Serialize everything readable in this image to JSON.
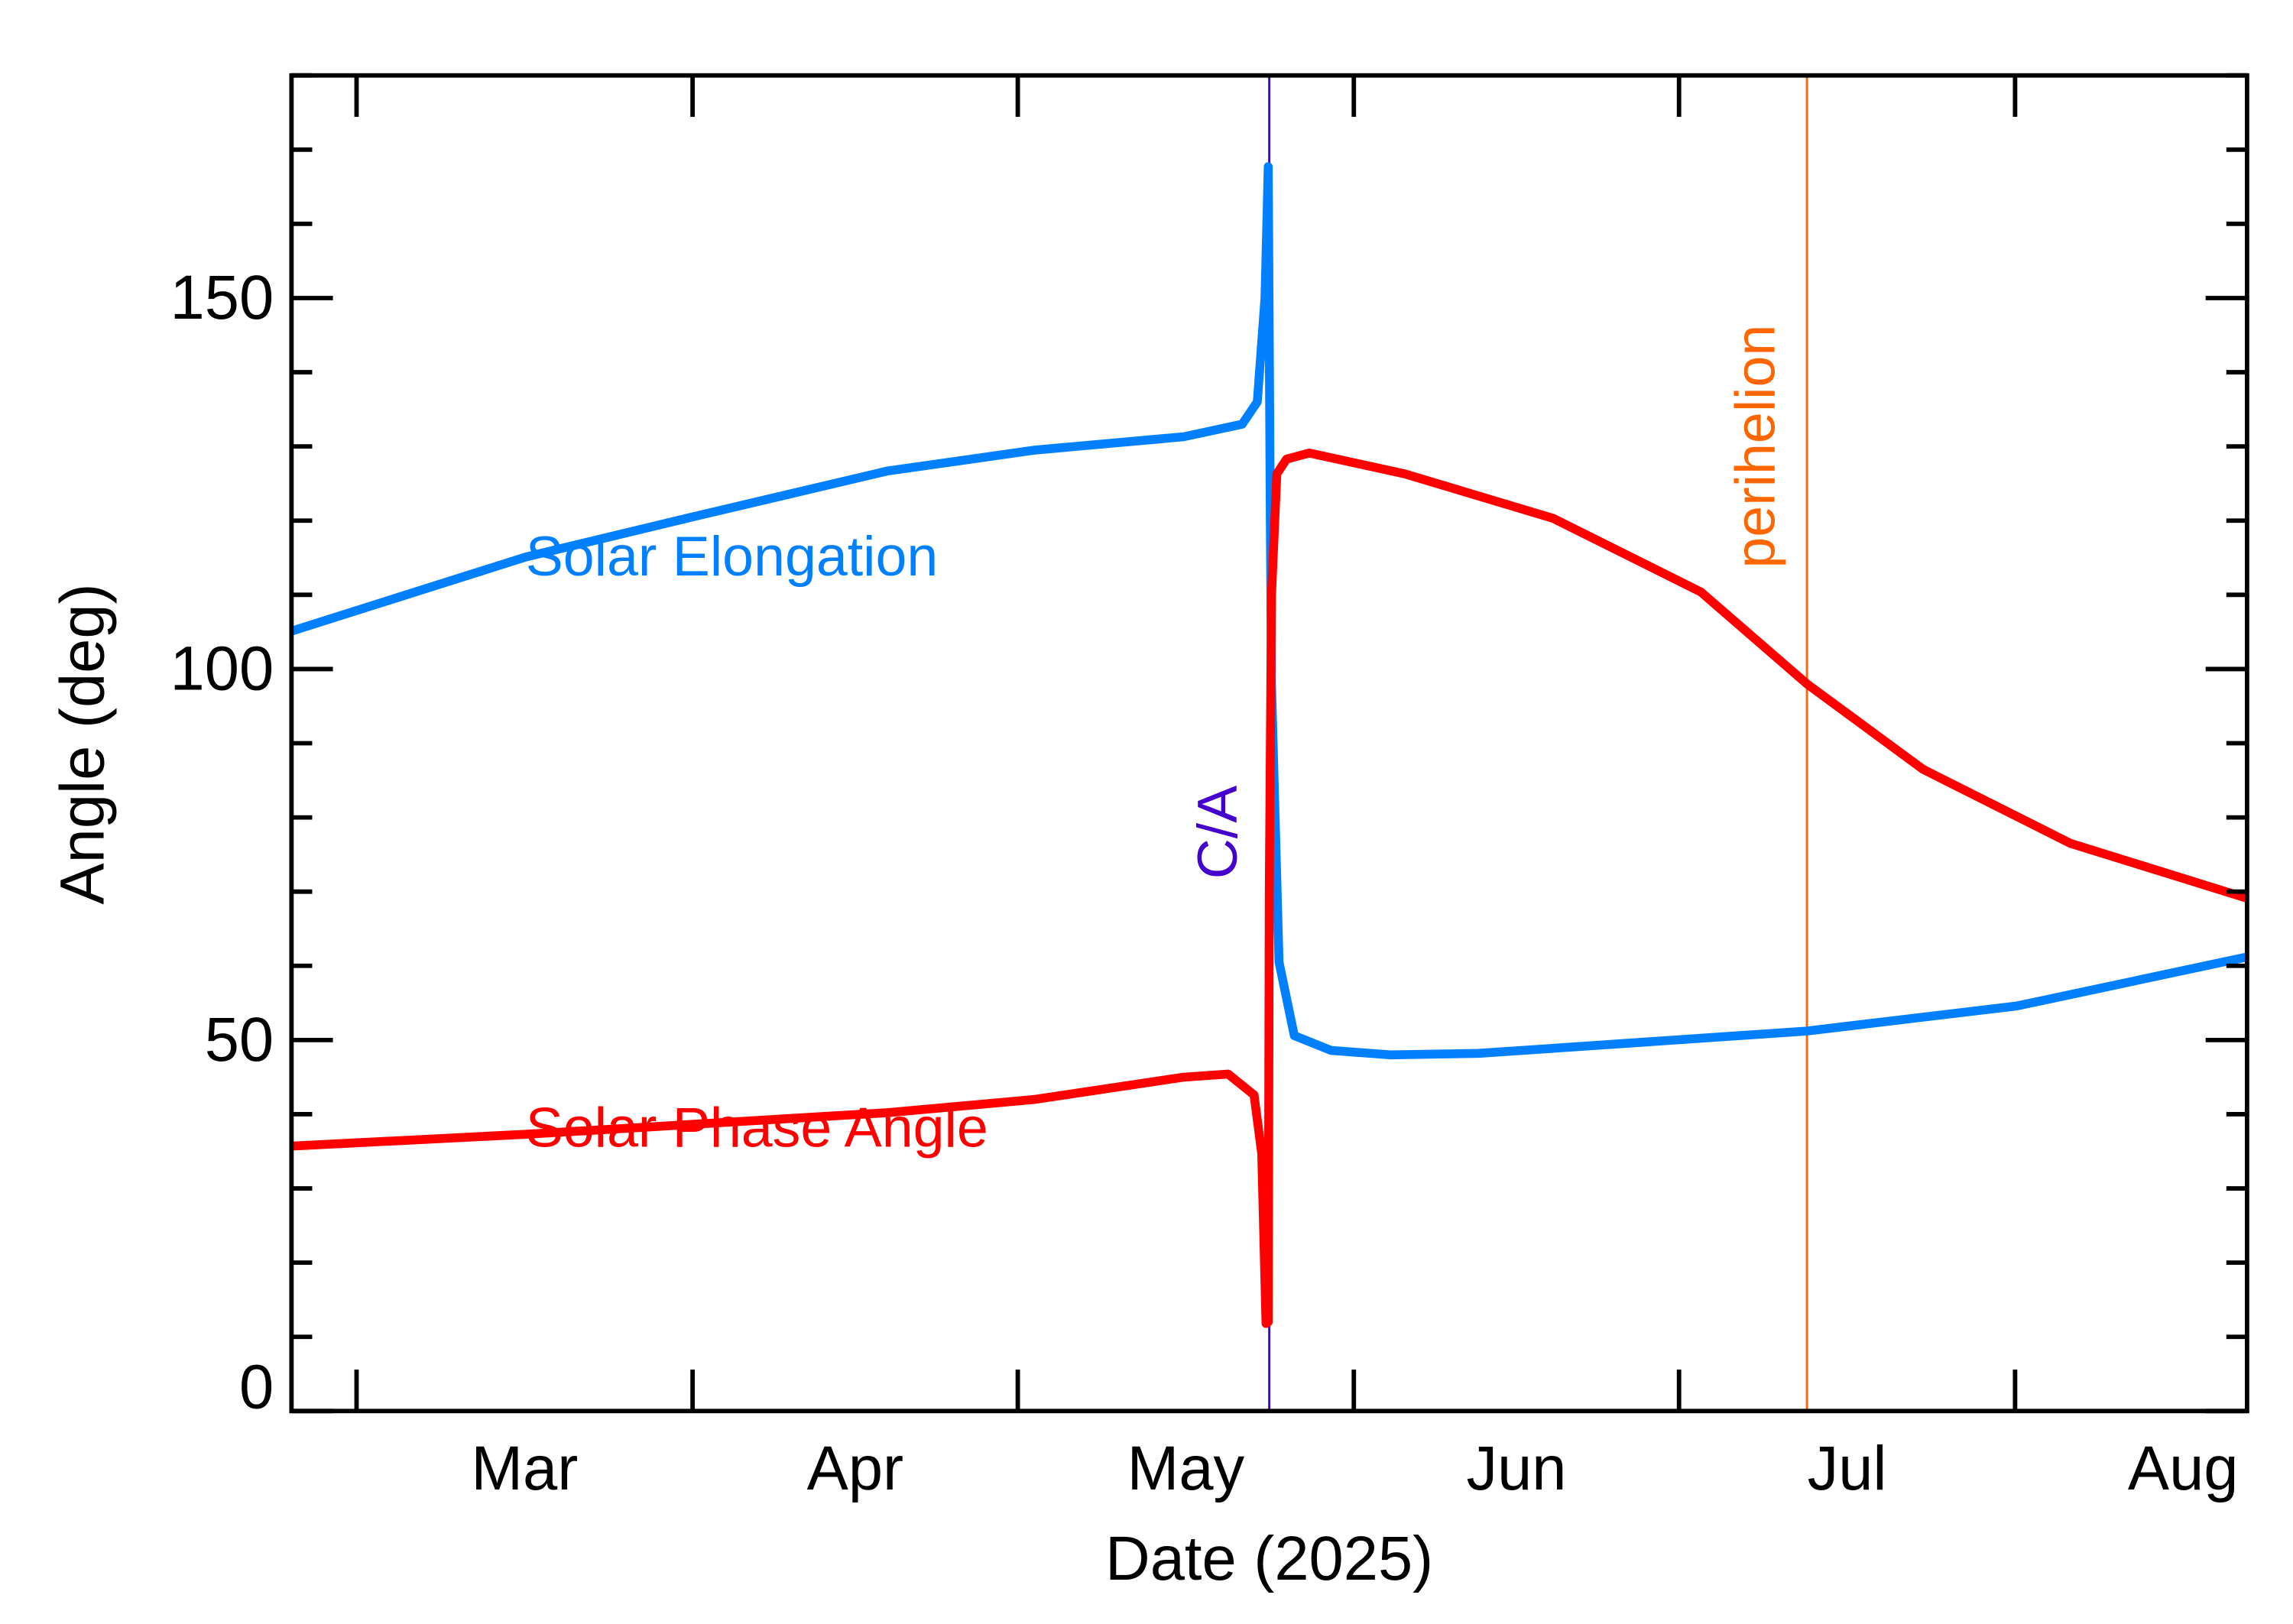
{
  "chart_data": {
    "type": "line",
    "title": "",
    "xlabel": "Date (2025)",
    "ylabel": "Angle (deg)",
    "x_units": "day of year 2025 (0 = Jan 1)",
    "xlim": [
      53,
      233.4
    ],
    "ylim": [
      0,
      180
    ],
    "grid": false,
    "y_ticks": [
      0,
      50,
      100,
      150
    ],
    "y_tick_labels": [
      "0",
      "50",
      "100",
      "150"
    ],
    "y_minor_step": 10,
    "x_ticks": [
      59,
      90,
      120,
      151,
      181,
      212
    ],
    "x_tick_labels": [
      "Mar",
      "Apr",
      "May",
      "Jun",
      "Jul",
      "Aug"
    ],
    "series": [
      {
        "name": "Solar Elongation",
        "color": "#0080ff",
        "x": [
          53,
          74.6,
          90,
          108,
          121.6,
          135.3,
          140.7,
          142.1,
          142.8,
          143.1,
          143.3,
          143.4,
          144.1,
          145.5,
          148.9,
          154.4,
          162.5,
          192.8,
          212.2,
          233.4
        ],
        "y": [
          105.1,
          115.1,
          120.5,
          126.7,
          129.5,
          131.3,
          133,
          136,
          150,
          167.7,
          120,
          98,
          60.5,
          50.6,
          48.6,
          48,
          48.2,
          51.2,
          54.6,
          61.2
        ]
      },
      {
        "name": "Solar Phase Angle",
        "color": "#ff0000",
        "x": [
          53,
          74.6,
          108,
          121.6,
          135.3,
          139.4,
          141.8,
          142.5,
          142.9,
          143.1,
          143.2,
          143.4,
          143.9,
          144.8,
          146.9,
          155.7,
          169.4,
          183,
          192.8,
          203.5,
          217.1,
          233.4
        ],
        "y": [
          35.7,
          37.3,
          40.2,
          42,
          45,
          45.4,
          42.6,
          34.7,
          11.8,
          12,
          70,
          110,
          126.3,
          128.3,
          129.1,
          126.3,
          120.3,
          110.4,
          98,
          86.5,
          76.5,
          69.1
        ]
      }
    ],
    "series_labels": [
      {
        "text": "Solar Elongation",
        "x": 74.6,
        "y": 115,
        "color": "#0080ff"
      },
      {
        "text": "Solar Phase Angle",
        "x": 74.6,
        "y": 38,
        "color": "#ff0000"
      }
    ],
    "vlines": [
      {
        "label": "C/A",
        "x": 143.2,
        "color": "#4400cc",
        "label_y": 78
      },
      {
        "label": "perihelion",
        "x": 192.8,
        "color": "#ff6600",
        "label_y": 130
      }
    ]
  }
}
